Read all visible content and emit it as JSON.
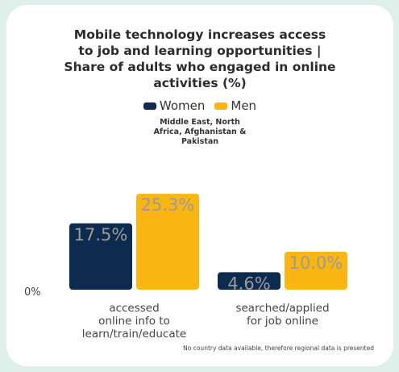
{
  "title_lines": [
    "Mobile technology increases access",
    "to job and learning opportunities |",
    "Share of adults who engaged in online",
    "activities (%)"
  ],
  "subtitle_lines": [
    "Middle East, North",
    "Africa, Afghanistan &",
    "Pakistan"
  ],
  "footnote": "No country data available, therefore regional data is presented",
  "colors": {
    "women": "#0d2b4e",
    "men": "#fbb613",
    "label": "#9a9a9a"
  },
  "chart_data": {
    "type": "bar",
    "categories": [
      [
        "accessed",
        "online info to",
        "learn/train/educate"
      ],
      [
        "searched/applied",
        "for job online"
      ]
    ],
    "series": [
      {
        "name": "Women",
        "values": [
          17.5,
          4.6
        ],
        "labels": [
          "17.5%",
          "4.6%"
        ]
      },
      {
        "name": "Men",
        "values": [
          25.3,
          10.0
        ],
        "labels": [
          "25.3%",
          "10.0%"
        ]
      }
    ],
    "ytick": "0%",
    "ylim": [
      0,
      25.3
    ]
  }
}
